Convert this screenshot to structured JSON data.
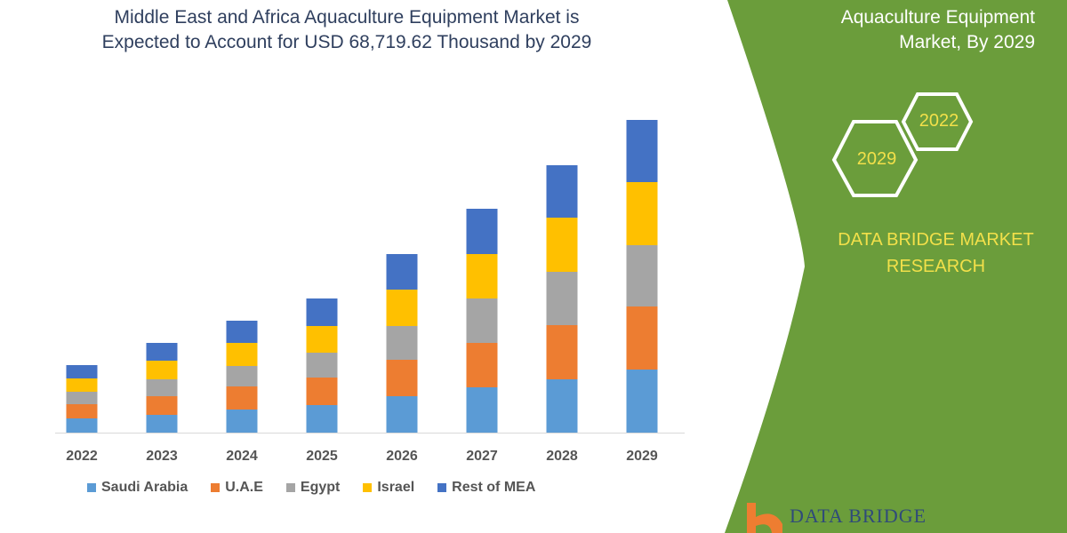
{
  "header": {
    "title_line1": "Middle East and Africa Aquaculture Equipment Market is",
    "title_line2": "Expected to Account for USD 68,719.62 Thousand by 2029"
  },
  "panel": {
    "title_line1": "Aquaculture Equipment",
    "title_line2": "Market, By 2029",
    "hex_years": [
      "2022",
      "2029"
    ],
    "brand_line1": "DATA BRIDGE MARKET",
    "brand_line2": "RESEARCH",
    "logo_text": "DATA BRIDGE",
    "color": "#6b9d3b"
  },
  "chart_data": {
    "type": "bar",
    "stacked": true,
    "title": "",
    "xlabel": "",
    "ylabel": "",
    "y_axis_shown": false,
    "grid": false,
    "legend_position": "bottom",
    "categories": [
      "2022",
      "2023",
      "2024",
      "2025",
      "2026",
      "2027",
      "2028",
      "2029"
    ],
    "series": [
      {
        "name": "Saudi Arabia",
        "color": "#5b9bd5",
        "values": [
          16,
          20,
          26,
          31,
          41,
          51,
          60,
          71
        ]
      },
      {
        "name": "U.A.E",
        "color": "#ed7d31",
        "values": [
          16,
          21,
          26,
          31,
          41,
          50,
          61,
          71
        ]
      },
      {
        "name": "Egypt",
        "color": "#a5a5a5",
        "values": [
          14,
          19,
          23,
          28,
          38,
          50,
          60,
          69
        ]
      },
      {
        "name": "Israel",
        "color": "#ffc000",
        "values": [
          15,
          21,
          26,
          30,
          41,
          50,
          61,
          71
        ]
      },
      {
        "name": "Rest of MEA",
        "color": "#4472c4",
        "values": [
          15,
          20,
          25,
          31,
          40,
          51,
          59,
          70
        ]
      }
    ]
  }
}
